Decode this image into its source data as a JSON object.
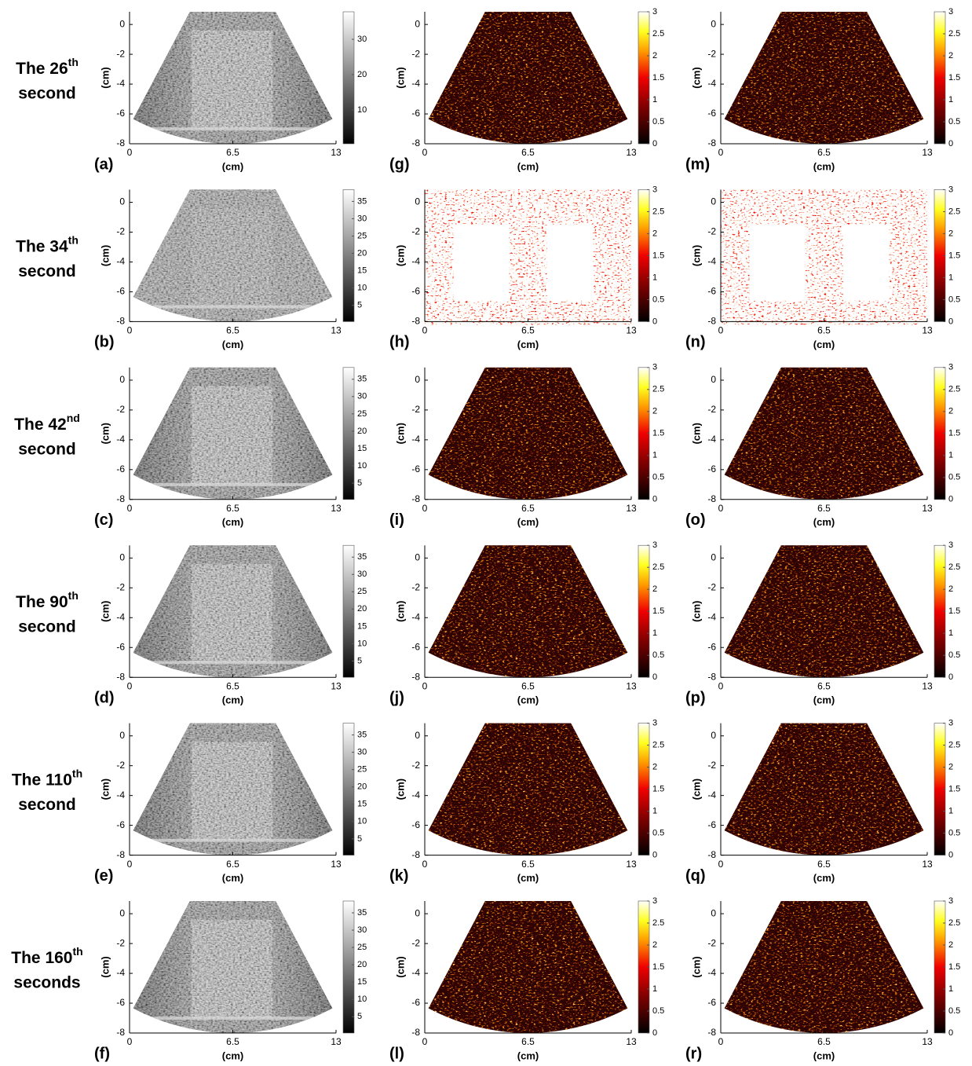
{
  "rows": [
    {
      "label": "The 26",
      "suffix": "th",
      "unit": "second"
    },
    {
      "label": "The 34",
      "suffix": "th",
      "unit": "second"
    },
    {
      "label": "The 42",
      "suffix": "nd",
      "unit": "second"
    },
    {
      "label": "The 90",
      "suffix": "th",
      "unit": "second"
    },
    {
      "label": "The 110",
      "suffix": "th",
      "unit": "second"
    },
    {
      "label": "The 160",
      "suffix": "th",
      "unit": "seconds"
    }
  ],
  "columns": [
    {
      "letters": [
        "(a)",
        "(b)",
        "(c)",
        "(d)",
        "(e)",
        "(f)"
      ]
    },
    {
      "letters": [
        "(g)",
        "(h)",
        "(i)",
        "(j)",
        "(k)",
        "(l)"
      ]
    },
    {
      "letters": [
        "(m)",
        "(n)",
        "(o)",
        "(p)",
        "(q)",
        "(r)"
      ]
    }
  ],
  "axes": {
    "x_label": "(cm)",
    "y_label": "(cm)",
    "xlim": [
      0,
      13
    ],
    "xticks": [
      0,
      6.5,
      13
    ],
    "ylim": [
      -8,
      0.85
    ],
    "yticks": [
      0,
      -2,
      -4,
      -6,
      -8
    ]
  },
  "colorbars": {
    "bmode_first": {
      "lim": [
        0.4,
        37.8
      ],
      "ticks": [
        10,
        20,
        30
      ]
    },
    "bmode": {
      "lim": [
        0.3,
        38.4
      ],
      "ticks": [
        5,
        10,
        15,
        20,
        25,
        30,
        35
      ]
    },
    "ratio": {
      "lim": [
        0,
        3
      ],
      "ticks": [
        0,
        0.5,
        1,
        1.5,
        2,
        2.5,
        3
      ]
    }
  }
}
